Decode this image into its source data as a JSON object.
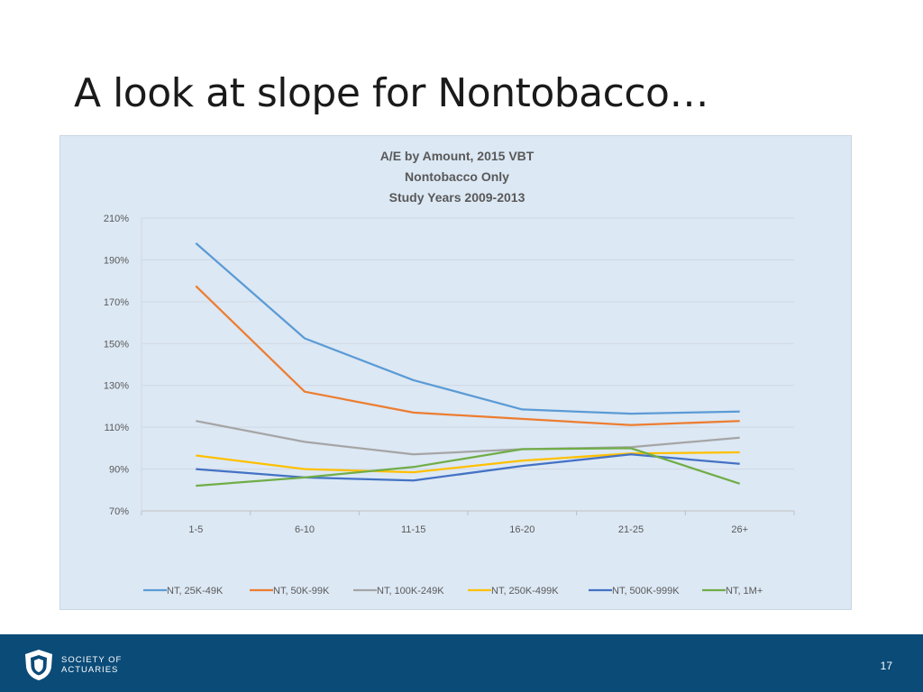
{
  "slide": {
    "title": "A look at slope for Nontobacco…",
    "page_number": "17"
  },
  "logo": {
    "line1": "SOCIETY OF",
    "line2": "ACTUARIES",
    "icon": "shield-icon"
  },
  "colors": {
    "footer": "#0b4b78",
    "chart_background": "#dce8f4"
  },
  "chart_data": {
    "type": "line",
    "title": [
      "A/E by Amount, 2015 VBT",
      "Nontobacco Only",
      "Study Years 2009-2013"
    ],
    "categories": [
      "1-5",
      "6-10",
      "11-15",
      "16-20",
      "21-25",
      "26+"
    ],
    "yticks": [
      "70%",
      "90%",
      "110%",
      "130%",
      "150%",
      "170%",
      "190%",
      "210%"
    ],
    "ylim": [
      70,
      210
    ],
    "ytick_step": 20,
    "unit": "%",
    "grid": true,
    "legend_position": "bottom",
    "series": [
      {
        "name": "NT, 25K-49K",
        "color": "#5b9bd5",
        "values": [
          198,
          152.5,
          132.5,
          118.5,
          116.5,
          117.5
        ]
      },
      {
        "name": "NT, 50K-99K",
        "color": "#ed7d31",
        "values": [
          177.5,
          127,
          117,
          114,
          111,
          113
        ]
      },
      {
        "name": "NT, 100K-249K",
        "color": "#a5a5a5",
        "values": [
          113,
          103,
          97,
          99.5,
          100.5,
          105
        ]
      },
      {
        "name": "NT, 250K-499K",
        "color": "#ffc000",
        "values": [
          96.5,
          90,
          88.5,
          94,
          97.5,
          98
        ]
      },
      {
        "name": "NT, 500K-999K",
        "color": "#4472c4",
        "values": [
          90,
          86,
          84.5,
          91.5,
          97,
          92.5
        ]
      },
      {
        "name": "NT, 1M+",
        "color": "#70ad47",
        "values": [
          82,
          86,
          91,
          99.5,
          100,
          83
        ]
      }
    ]
  }
}
